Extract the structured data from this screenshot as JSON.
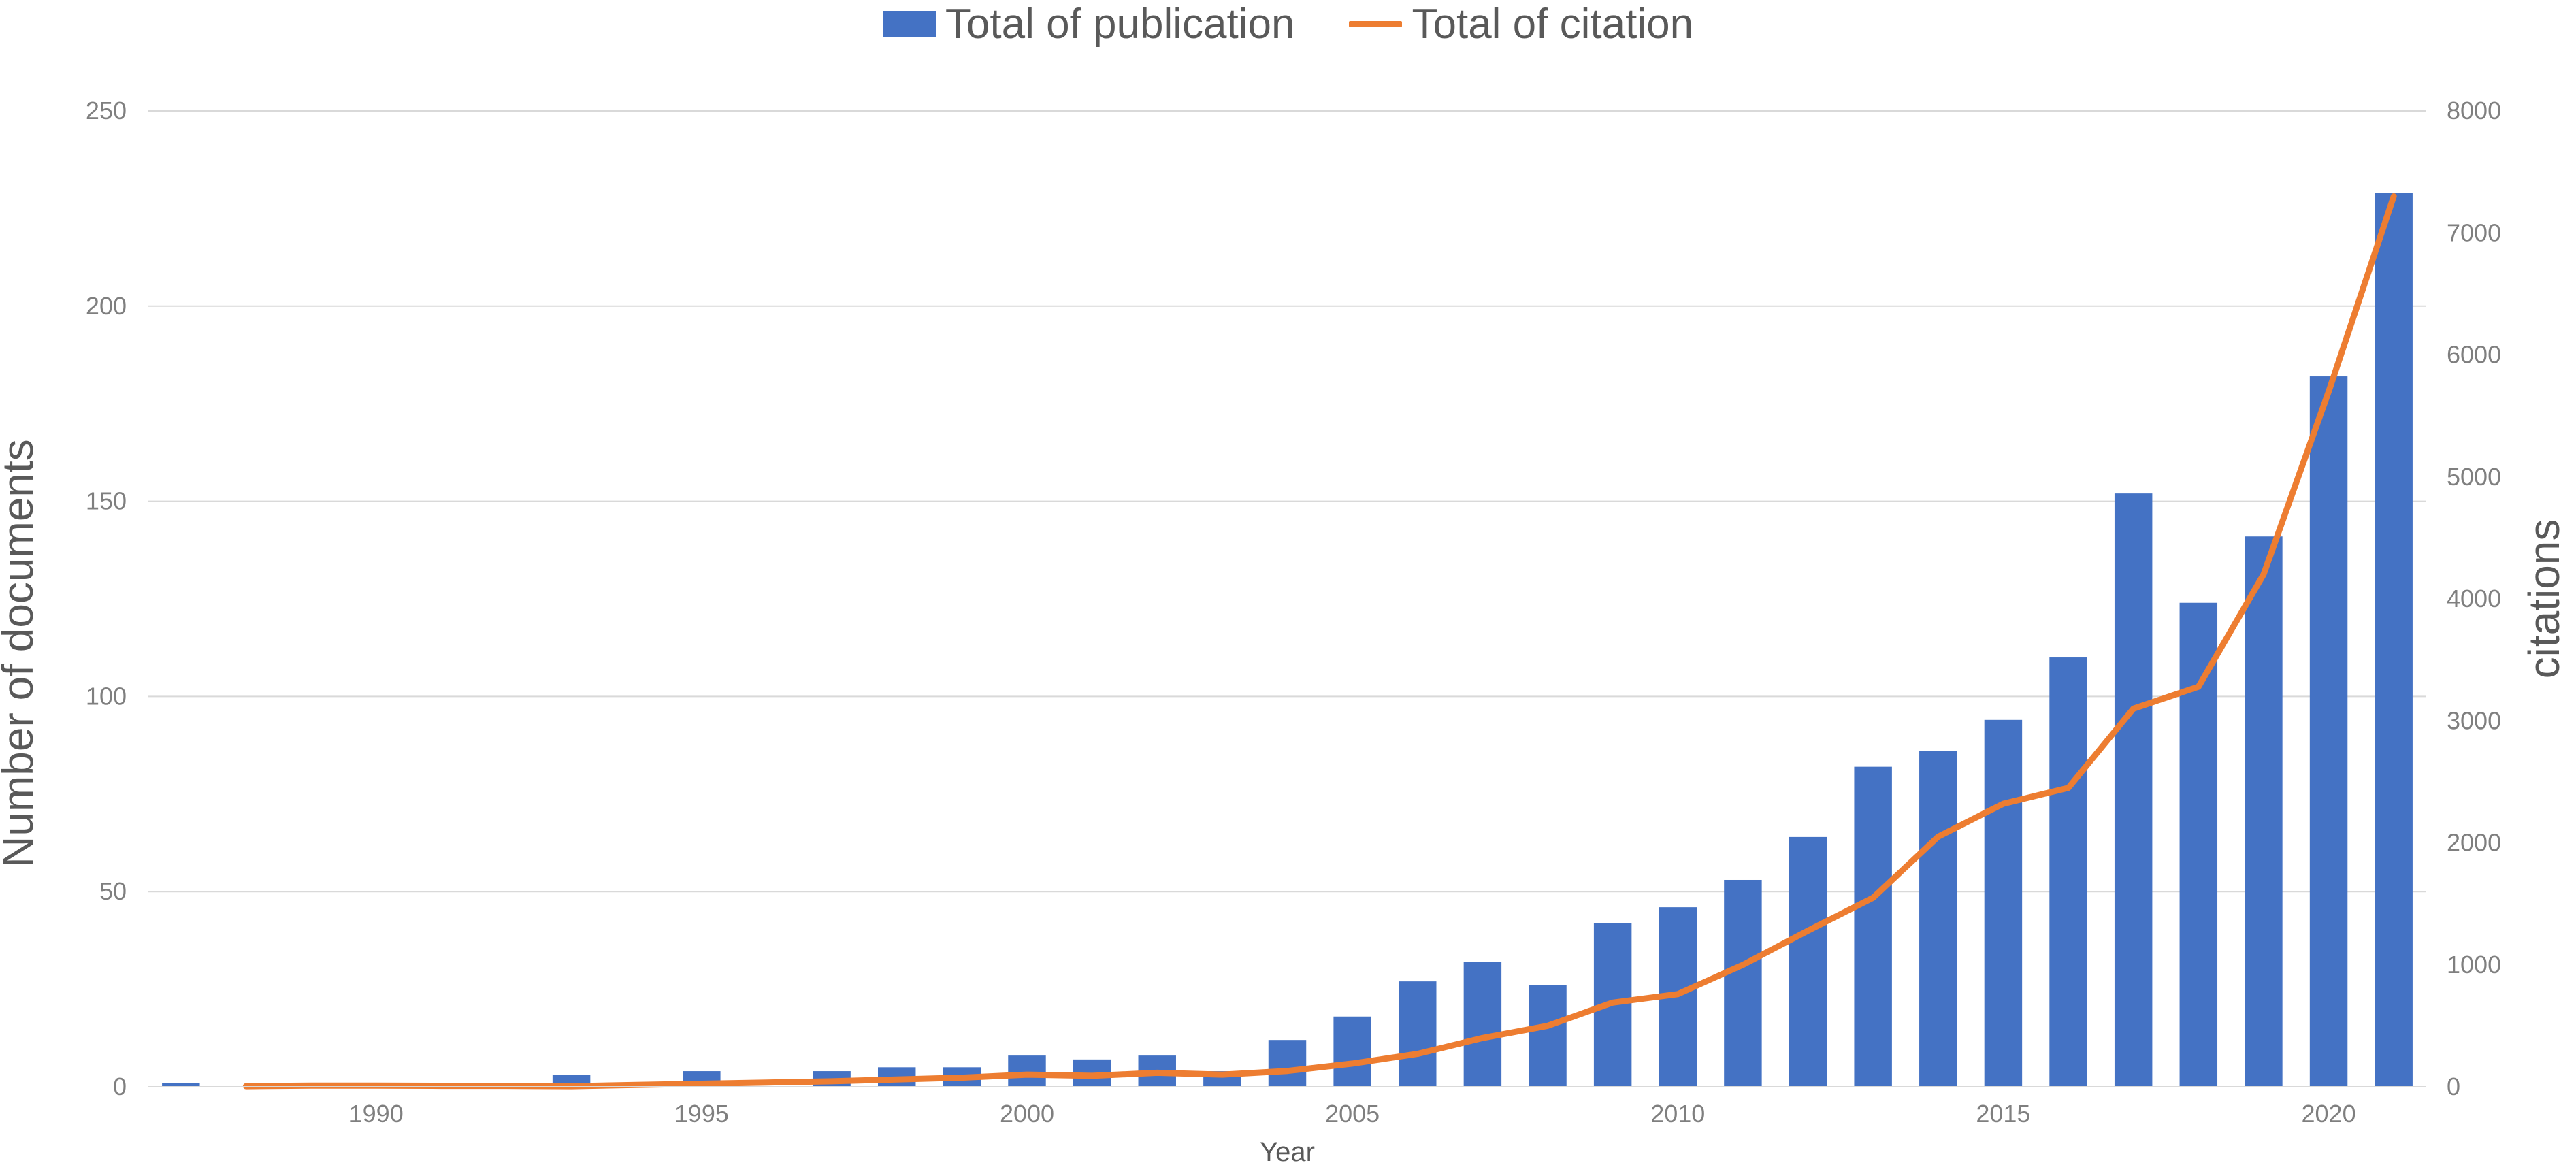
{
  "chart_data": {
    "type": "bar",
    "legend_placement": "top-center",
    "grid": true,
    "xlabel": "Year",
    "ylabel": "Number of  documents",
    "y2label": "citations",
    "ylim": [
      0,
      250
    ],
    "y2lim": [
      0,
      8000
    ],
    "y_ticks": [
      "0",
      "50",
      "100",
      "150",
      "200",
      "250"
    ],
    "y2_ticks": [
      "0",
      "1000",
      "2000",
      "3000",
      "4000",
      "5000",
      "6000",
      "7000",
      "8000"
    ],
    "x_tick_labels": [
      "1990",
      "1995",
      "2000",
      "2005",
      "2010",
      "2015",
      "2020"
    ],
    "x": [
      1987,
      1988,
      1989,
      1990,
      1991,
      1992,
      1993,
      1994,
      1995,
      1996,
      1997,
      1998,
      1999,
      2000,
      2001,
      2002,
      2003,
      2004,
      2005,
      2006,
      2007,
      2008,
      2009,
      2010,
      2011,
      2012,
      2013,
      2014,
      2015,
      2016,
      2017,
      2018,
      2019,
      2020,
      2021
    ],
    "series": [
      {
        "name": "Total of publication",
        "type": "bar",
        "axis": "left",
        "color": "#4472c4",
        "values": [
          1,
          0,
          0,
          0,
          0,
          0,
          3,
          0,
          4,
          0,
          4,
          5,
          5,
          8,
          7,
          8,
          4,
          12,
          18,
          27,
          32,
          26,
          42,
          46,
          53,
          64,
          82,
          86,
          94,
          110,
          152,
          124,
          141,
          182,
          229
        ]
      },
      {
        "name": "Total of citation",
        "type": "line",
        "axis": "right",
        "color": "#ed7d31",
        "values": [
          null,
          5,
          10,
          10,
          8,
          8,
          5,
          15,
          25,
          35,
          45,
          60,
          75,
          100,
          90,
          115,
          100,
          130,
          190,
          270,
          400,
          500,
          690,
          760,
          1000,
          1280,
          1550,
          2050,
          2320,
          2450,
          3100,
          3280,
          4200,
          5700,
          7300
        ]
      }
    ]
  }
}
